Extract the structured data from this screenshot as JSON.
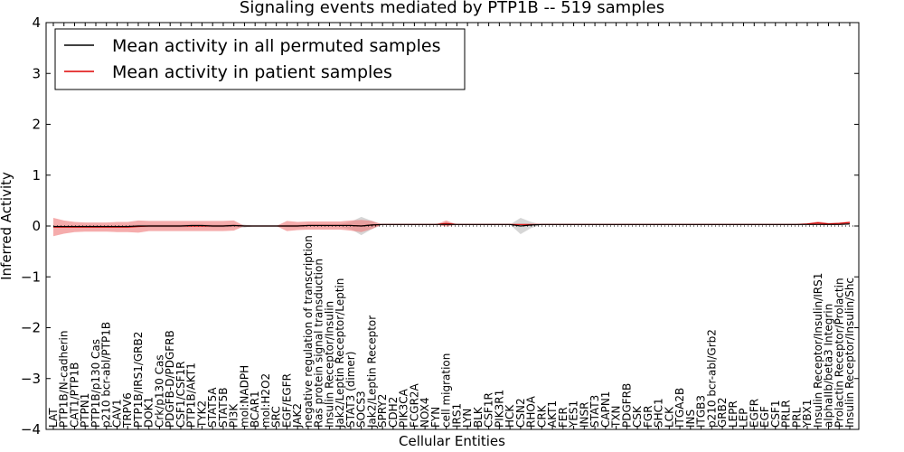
{
  "chart_data": {
    "type": "line",
    "title": "Signaling events mediated by PTP1B -- 519 samples",
    "xlabel": "Cellular Entities",
    "ylabel": "Inferred Activity",
    "ylim": [
      -4,
      4
    ],
    "yticks": [
      -4,
      -3,
      -2,
      -1,
      0,
      1,
      2,
      3,
      4
    ],
    "ytick_labels": [
      "−4",
      "−3",
      "−2",
      "−1",
      "0",
      "1",
      "2",
      "3",
      "4"
    ],
    "legend_position": "top-left",
    "colors": {
      "permuted": "#000000",
      "patient": "#dd0000",
      "patient_band": "#f08080",
      "permuted_band": "#bbbbbb"
    },
    "categories": [
      "LAT",
      "PTP1B/N-cadherin",
      "CAT1/PTP1B",
      "PTPN1",
      "PTP1B/p130 Cas",
      "p210 bcr-abl/PTP1B",
      "CAV1",
      "TRPV6",
      "PTP1B/IRS1/GRB2",
      "DOK1",
      "Crk/p130 Cas",
      "PDGFB-D/PDGFRB",
      "CSF1/CSF1R",
      "PTP1B/AKT1",
      "TYK2",
      "STAT5A",
      "STAT5B",
      "PI3K",
      "mol:NADPH",
      "BCAR1",
      "mol:H2O2",
      "SRC",
      "EGF/EGFR",
      "JAK2",
      "negative regulation of transcription",
      "Ras protein signal transduction",
      "Insulin Receptor/Insulin",
      "Jak2/Leptin Receptor/Leptin",
      "STAT3 (dimer)",
      "SOCS3",
      "Jak2/Leptin Receptor",
      "SPRY2",
      "CDH2",
      "PIK3CA",
      "FCGR2A",
      "NOX4",
      "FYN",
      "cell migration",
      "IRS1",
      "LYN",
      "BLK",
      "CSF1R",
      "PIK3R1",
      "HCK",
      "CSN2",
      "RHOA",
      "CRK",
      "AKT1",
      "FER",
      "YES1",
      "INSR",
      "STAT3",
      "CAPN1",
      "TXN",
      "PDGFRB",
      "CSK",
      "FGR",
      "SHC1",
      "LCK",
      "ITGA2B",
      "INS",
      "ITGB3",
      "p210 bcr-abl/Grb2",
      "GRB2",
      "LEPR",
      "LEP",
      "EGFR",
      "EGF",
      "CSF1",
      "PRLR",
      "PRL",
      "YBX1",
      "Insulin Receptor/Insulin/IRS1",
      "alphaIIb/beta3 Integrin",
      "Prolactin Receptor/Prolactin",
      "Insulin Receptor/Insulin/Shc"
    ],
    "series": [
      {
        "name": "Mean activity in all permuted samples",
        "values": [
          -0.01,
          -0.01,
          -0.01,
          -0.01,
          -0.01,
          -0.01,
          -0.01,
          -0.01,
          0.0,
          0.0,
          0.0,
          0.0,
          0.0,
          0.01,
          0.01,
          0.0,
          0.0,
          0.01,
          0.0,
          0.0,
          0.0,
          0.0,
          0.0,
          0.0,
          0.01,
          0.01,
          0.01,
          0.01,
          0.01,
          0.0,
          0.02,
          0.03,
          0.03,
          0.03,
          0.03,
          0.03,
          0.03,
          0.03,
          0.03,
          0.03,
          0.03,
          0.03,
          0.03,
          0.03,
          0.0,
          0.02,
          0.03,
          0.03,
          0.03,
          0.03,
          0.03,
          0.03,
          0.03,
          0.03,
          0.03,
          0.03,
          0.03,
          0.03,
          0.03,
          0.03,
          0.03,
          0.03,
          0.03,
          0.03,
          0.03,
          0.03,
          0.03,
          0.03,
          0.03,
          0.03,
          0.03,
          0.03,
          0.03,
          0.03,
          0.03,
          0.04
        ],
        "band": [
          0.03,
          0.03,
          0.03,
          0.03,
          0.03,
          0.03,
          0.03,
          0.03,
          0.03,
          0.03,
          0.03,
          0.03,
          0.03,
          0.03,
          0.03,
          0.03,
          0.03,
          0.03,
          0.03,
          0.0,
          0.0,
          0.0,
          0.03,
          0.03,
          0.03,
          0.03,
          0.03,
          0.03,
          0.07,
          0.18,
          0.08,
          0.0,
          0.0,
          0.0,
          0.0,
          0.0,
          0.0,
          0.0,
          0.0,
          0.0,
          0.0,
          0.0,
          0.0,
          0.0,
          0.16,
          0.06,
          0.0,
          0.0,
          0.0,
          0.0,
          0.0,
          0.0,
          0.0,
          0.0,
          0.0,
          0.0,
          0.0,
          0.0,
          0.0,
          0.0,
          0.0,
          0.0,
          0.0,
          0.0,
          0.0,
          0.0,
          0.0,
          0.0,
          0.0,
          0.0,
          0.0,
          0.0,
          0.0,
          0.0,
          0.0,
          0.0
        ]
      },
      {
        "name": "Mean activity in patient samples",
        "values": [
          -0.02,
          -0.02,
          -0.02,
          -0.02,
          -0.02,
          -0.02,
          -0.02,
          -0.02,
          -0.01,
          0.0,
          0.0,
          0.0,
          0.0,
          0.0,
          0.0,
          0.0,
          0.0,
          0.01,
          0.0,
          0.0,
          0.0,
          0.0,
          0.0,
          0.0,
          0.01,
          0.01,
          0.01,
          0.01,
          0.01,
          0.0,
          0.02,
          0.03,
          0.03,
          0.03,
          0.03,
          0.03,
          0.03,
          0.05,
          0.03,
          0.03,
          0.03,
          0.03,
          0.03,
          0.03,
          0.03,
          0.03,
          0.03,
          0.03,
          0.03,
          0.03,
          0.03,
          0.03,
          0.03,
          0.03,
          0.03,
          0.03,
          0.03,
          0.03,
          0.03,
          0.03,
          0.03,
          0.03,
          0.03,
          0.03,
          0.03,
          0.03,
          0.03,
          0.03,
          0.03,
          0.03,
          0.03,
          0.04,
          0.06,
          0.04,
          0.05,
          0.07
        ],
        "band": [
          0.18,
          0.13,
          0.1,
          0.09,
          0.09,
          0.09,
          0.1,
          0.1,
          0.12,
          0.1,
          0.1,
          0.1,
          0.1,
          0.1,
          0.1,
          0.1,
          0.1,
          0.1,
          0.0,
          0.0,
          0.0,
          0.0,
          0.1,
          0.08,
          0.08,
          0.08,
          0.08,
          0.08,
          0.1,
          0.12,
          0.08,
          0.0,
          0.0,
          0.0,
          0.0,
          0.0,
          0.0,
          0.06,
          0.0,
          0.0,
          0.0,
          0.0,
          0.0,
          0.0,
          0.0,
          0.0,
          0.0,
          0.0,
          0.0,
          0.0,
          0.0,
          0.0,
          0.0,
          0.0,
          0.0,
          0.0,
          0.0,
          0.0,
          0.0,
          0.0,
          0.0,
          0.0,
          0.0,
          0.0,
          0.0,
          0.0,
          0.0,
          0.0,
          0.0,
          0.0,
          0.0,
          0.01,
          0.03,
          0.02,
          0.02,
          0.02
        ]
      }
    ]
  }
}
